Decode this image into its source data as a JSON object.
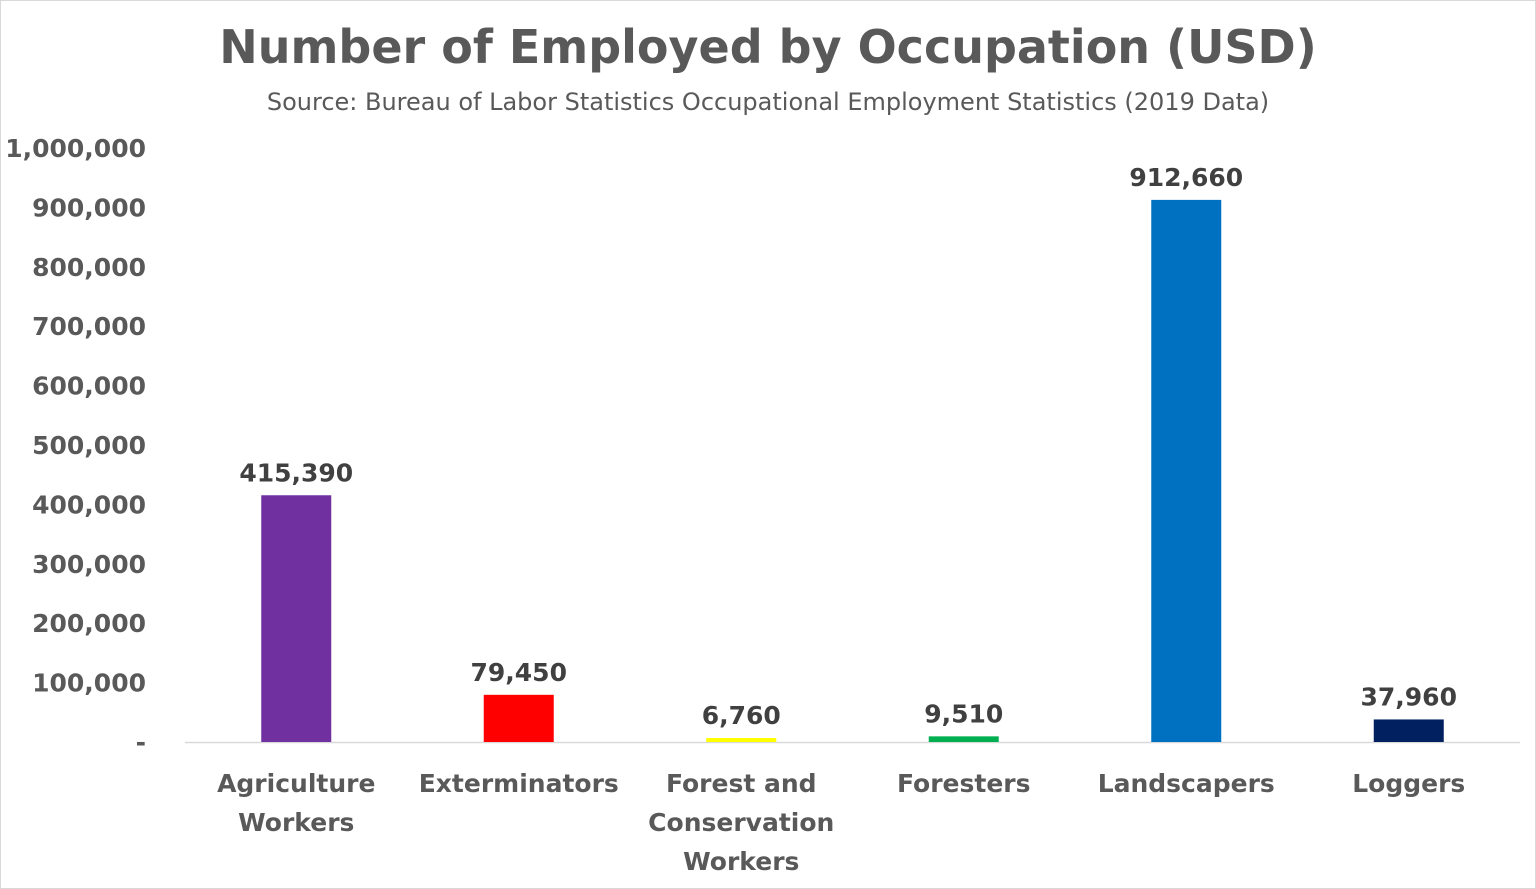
{
  "chart_data": {
    "type": "bar",
    "title": "Number of Employed by Occupation (USD)",
    "subtitle": "Source: Bureau of Labor Statistics Occupational Employment Statistics (2019 Data)",
    "xlabel": "",
    "ylabel": "",
    "ylim": [
      0,
      1000000
    ],
    "grid": false,
    "categories": [
      [
        "Agriculture",
        "Workers"
      ],
      [
        "Exterminators"
      ],
      [
        "Forest and",
        "Conservation",
        "Workers"
      ],
      [
        "Foresters"
      ],
      [
        "Landscapers"
      ],
      [
        "Loggers"
      ]
    ],
    "values": [
      415390,
      79450,
      6760,
      9510,
      912660,
      37960
    ],
    "data_labels": [
      "415,390",
      "79,450",
      "6,760",
      "9,510",
      "912,660",
      "37,960"
    ],
    "colors": [
      "#7030A0",
      "#FF0000",
      "#FFFF00",
      "#00B050",
      "#0070C0",
      "#002060"
    ],
    "y_ticks": [
      0,
      100000,
      200000,
      300000,
      400000,
      500000,
      600000,
      700000,
      800000,
      900000,
      1000000
    ],
    "y_tick_labels": [
      "-",
      "100,000",
      "200,000",
      "300,000",
      "400,000",
      "500,000",
      "600,000",
      "700,000",
      "800,000",
      "900,000",
      "1,000,000"
    ]
  }
}
